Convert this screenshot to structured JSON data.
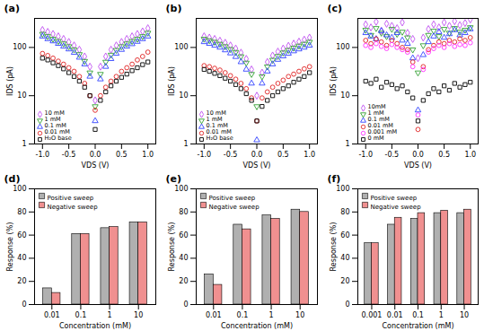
{
  "chart_data": [
    {
      "type": "scatter",
      "title": "(a)",
      "x_label": "VDS (V)",
      "y_label": "IDS (pA)",
      "log": "y",
      "legend": "lower left",
      "xlim": [
        -1.15,
        1.15
      ],
      "xticks": [
        {
          "value": -1,
          "label": "-1.0"
        },
        {
          "value": -0.5,
          "label": "-0.5"
        },
        {
          "value": 0,
          "label": "0.0"
        },
        {
          "value": 0.5,
          "label": "0.5"
        },
        {
          "value": 1,
          "label": "1.0"
        }
      ],
      "ylim": [
        1,
        400
      ],
      "yticks": [
        1,
        10,
        100
      ],
      "x": [
        -1.0,
        -0.9,
        -0.8,
        -0.7,
        -0.6,
        -0.5,
        -0.4,
        -0.3,
        -0.2,
        -0.1,
        0.0,
        0.1,
        0.2,
        0.3,
        0.4,
        0.5,
        0.6,
        0.7,
        0.8,
        0.9,
        1.0
      ],
      "series": [
        {
          "name": "10 mM",
          "color": "#c050f0",
          "marker": "diamond",
          "values": [
            230,
            210,
            190,
            170,
            150,
            130,
            110,
            90,
            65,
            40,
            8,
            40,
            65,
            90,
            110,
            130,
            150,
            170,
            190,
            215,
            250
          ]
        },
        {
          "name": "1 mM",
          "color": "#33a033",
          "marker": "triangle-down",
          "values": [
            190,
            170,
            150,
            135,
            120,
            105,
            90,
            72,
            52,
            30,
            6,
            28,
            50,
            70,
            88,
            105,
            120,
            135,
            150,
            170,
            200
          ]
        },
        {
          "name": "0.1 mM",
          "color": "#3344ff",
          "marker": "triangle",
          "values": [
            170,
            150,
            135,
            120,
            105,
            92,
            78,
            62,
            45,
            25,
            3,
            22,
            40,
            58,
            75,
            90,
            105,
            118,
            132,
            150,
            170
          ]
        },
        {
          "name": "0.01 mM",
          "color": "#e02020",
          "marker": "circle",
          "values": [
            75,
            68,
            60,
            52,
            45,
            38,
            32,
            25,
            18,
            10,
            5,
            10,
            15,
            20,
            25,
            32,
            38,
            45,
            55,
            65,
            80
          ]
        },
        {
          "name": "H₂O base",
          "color": "#000000",
          "marker": "square",
          "values": [
            60,
            55,
            48,
            42,
            36,
            30,
            25,
            20,
            15,
            10,
            2,
            8,
            12,
            16,
            20,
            24,
            28,
            33,
            38,
            44,
            50
          ]
        }
      ]
    },
    {
      "type": "scatter",
      "title": "(b)",
      "x_label": "VDS (V)",
      "y_label": "IDS (pA)",
      "log": "y",
      "legend": "lower left",
      "xlim": [
        -1.15,
        1.15
      ],
      "xticks": [
        {
          "value": -1,
          "label": "-1.0"
        },
        {
          "value": -0.5,
          "label": "-0.5"
        },
        {
          "value": 0,
          "label": "0.0"
        },
        {
          "value": 0.5,
          "label": "0.5"
        },
        {
          "value": 1,
          "label": "1.0"
        }
      ],
      "ylim": [
        1,
        400
      ],
      "yticks": [
        1,
        10,
        100
      ],
      "x": [
        -1.0,
        -0.9,
        -0.8,
        -0.7,
        -0.6,
        -0.5,
        -0.4,
        -0.3,
        -0.2,
        -0.1,
        0.0,
        0.1,
        0.2,
        0.3,
        0.4,
        0.5,
        0.6,
        0.7,
        0.8,
        0.9,
        1.0
      ],
      "series": [
        {
          "name": "10 mM",
          "color": "#c050f0",
          "marker": "diamond",
          "values": [
            170,
            160,
            150,
            138,
            125,
            110,
            95,
            78,
            58,
            35,
            10,
            30,
            50,
            68,
            82,
            95,
            108,
            120,
            132,
            145,
            160
          ]
        },
        {
          "name": "1 mM",
          "color": "#33a033",
          "marker": "triangle-down",
          "values": [
            150,
            140,
            130,
            118,
            105,
            92,
            80,
            65,
            48,
            28,
            6,
            25,
            40,
            55,
            66,
            78,
            88,
            98,
            108,
            118,
            130
          ]
        },
        {
          "name": "0.1 mM",
          "color": "#3344ff",
          "marker": "triangle",
          "values": [
            130,
            120,
            110,
            100,
            88,
            76,
            64,
            50,
            35,
            18,
            1.2,
            18,
            32,
            45,
            56,
            66,
            75,
            84,
            92,
            100,
            110
          ]
        },
        {
          "name": "0.01 mM",
          "color": "#e02020",
          "marker": "circle",
          "values": [
            42,
            40,
            37,
            34,
            30,
            26,
            22,
            18,
            14,
            9,
            3,
            9,
            12,
            15,
            18,
            21,
            25,
            28,
            32,
            36,
            40
          ]
        },
        {
          "name": "H₂O base",
          "color": "#000000",
          "marker": "square",
          "values": [
            35,
            32,
            29,
            26,
            23,
            20,
            17,
            14,
            11,
            8,
            3,
            6,
            8,
            10,
            12,
            14,
            16,
            19,
            22,
            25,
            30
          ]
        }
      ]
    },
    {
      "type": "scatter",
      "title": "(c)",
      "x_label": "VDS (V)",
      "y_label": "IDS (pA)",
      "log": "y",
      "legend": "lower left",
      "xlim": [
        -1.15,
        1.15
      ],
      "xticks": [
        {
          "value": -1,
          "label": "-1.0"
        },
        {
          "value": -0.5,
          "label": "-0.5"
        },
        {
          "value": 0,
          "label": "0.0"
        },
        {
          "value": 0.5,
          "label": "0.5"
        },
        {
          "value": 1,
          "label": "1.0"
        }
      ],
      "ylim": [
        1,
        400
      ],
      "yticks": [
        1,
        10,
        100
      ],
      "x": [
        -1.0,
        -0.9,
        -0.8,
        -0.7,
        -0.6,
        -0.5,
        -0.4,
        -0.3,
        -0.2,
        -0.1,
        0.0,
        0.1,
        0.2,
        0.3,
        0.4,
        0.5,
        0.6,
        0.7,
        0.8,
        0.9,
        1.0
      ],
      "series": [
        {
          "name": "10mM",
          "color": "#c050f0",
          "marker": "diamond",
          "values": [
            300,
            260,
            340,
            220,
            310,
            280,
            250,
            330,
            200,
            150,
            60,
            160,
            240,
            300,
            260,
            330,
            280,
            350,
            290,
            320,
            380
          ]
        },
        {
          "name": "1 mM",
          "color": "#33a033",
          "marker": "triangle-down",
          "values": [
            230,
            180,
            250,
            200,
            170,
            240,
            190,
            210,
            160,
            90,
            30,
            110,
            180,
            220,
            170,
            240,
            200,
            250,
            210,
            230,
            260
          ]
        },
        {
          "name": "0.1 mM",
          "color": "#3344ff",
          "marker": "triangle",
          "values": [
            200,
            170,
            150,
            220,
            180,
            160,
            200,
            140,
            120,
            60,
            5,
            70,
            130,
            170,
            210,
            160,
            190,
            230,
            180,
            200,
            240
          ]
        },
        {
          "name": "0.01 mM",
          "color": "#e02020",
          "marker": "circle",
          "values": [
            140,
            120,
            150,
            130,
            110,
            140,
            120,
            100,
            90,
            50,
            2,
            40,
            90,
            110,
            130,
            120,
            140,
            130,
            150,
            140,
            160
          ]
        },
        {
          "name": "0.001 mM",
          "color": "#ff30ff",
          "marker": "circle",
          "values": [
            110,
            100,
            120,
            105,
            95,
            115,
            100,
            90,
            80,
            40,
            4,
            35,
            80,
            95,
            110,
            100,
            120,
            105,
            115,
            110,
            125
          ]
        },
        {
          "name": "0 mM",
          "color": "#000000",
          "marker": "square",
          "values": [
            20,
            18,
            22,
            15,
            19,
            17,
            14,
            16,
            12,
            9,
            3,
            8,
            11,
            14,
            12,
            16,
            13,
            18,
            15,
            17,
            19
          ]
        }
      ]
    },
    {
      "type": "bar",
      "title": "(d)",
      "x_label": "Concentration (mM)",
      "y_label": "Response (%)",
      "legend": "upper left",
      "categories": [
        "0.01",
        "0.1",
        "1",
        "10"
      ],
      "ylim": [
        0,
        100
      ],
      "yticks": [
        0,
        20,
        40,
        60,
        80,
        100
      ],
      "series": [
        {
          "name": "Positive sweep",
          "color": "#b0b0b0",
          "values": [
            14,
            61,
            66,
            71
          ]
        },
        {
          "name": "Negative sweep",
          "color": "#f09090",
          "values": [
            10,
            61,
            67,
            71
          ]
        }
      ]
    },
    {
      "type": "bar",
      "title": "(e)",
      "x_label": "Concentration (mM)",
      "y_label": "Response (%)",
      "legend": "upper left",
      "categories": [
        "0.01",
        "0.1",
        "1",
        "10"
      ],
      "ylim": [
        0,
        100
      ],
      "yticks": [
        0,
        20,
        40,
        60,
        80,
        100
      ],
      "series": [
        {
          "name": "Positive sweep",
          "color": "#b0b0b0",
          "values": [
            26,
            69,
            77,
            82
          ]
        },
        {
          "name": "Negative sweep",
          "color": "#f09090",
          "values": [
            17,
            65,
            74,
            80
          ]
        }
      ]
    },
    {
      "type": "bar",
      "title": "(f)",
      "x_label": "Concentration (mM)",
      "y_label": "Response (%)",
      "legend": "upper left",
      "categories": [
        "0.001",
        "0.01",
        "0.1",
        "1",
        "10"
      ],
      "ylim": [
        0,
        100
      ],
      "yticks": [
        0,
        20,
        40,
        60,
        80,
        100
      ],
      "series": [
        {
          "name": "Positive sweep",
          "color": "#b0b0b0",
          "values": [
            53,
            69,
            74,
            79,
            79
          ]
        },
        {
          "name": "Negative sweep",
          "color": "#f09090",
          "values": [
            53,
            75,
            79,
            81,
            82
          ]
        }
      ]
    }
  ]
}
